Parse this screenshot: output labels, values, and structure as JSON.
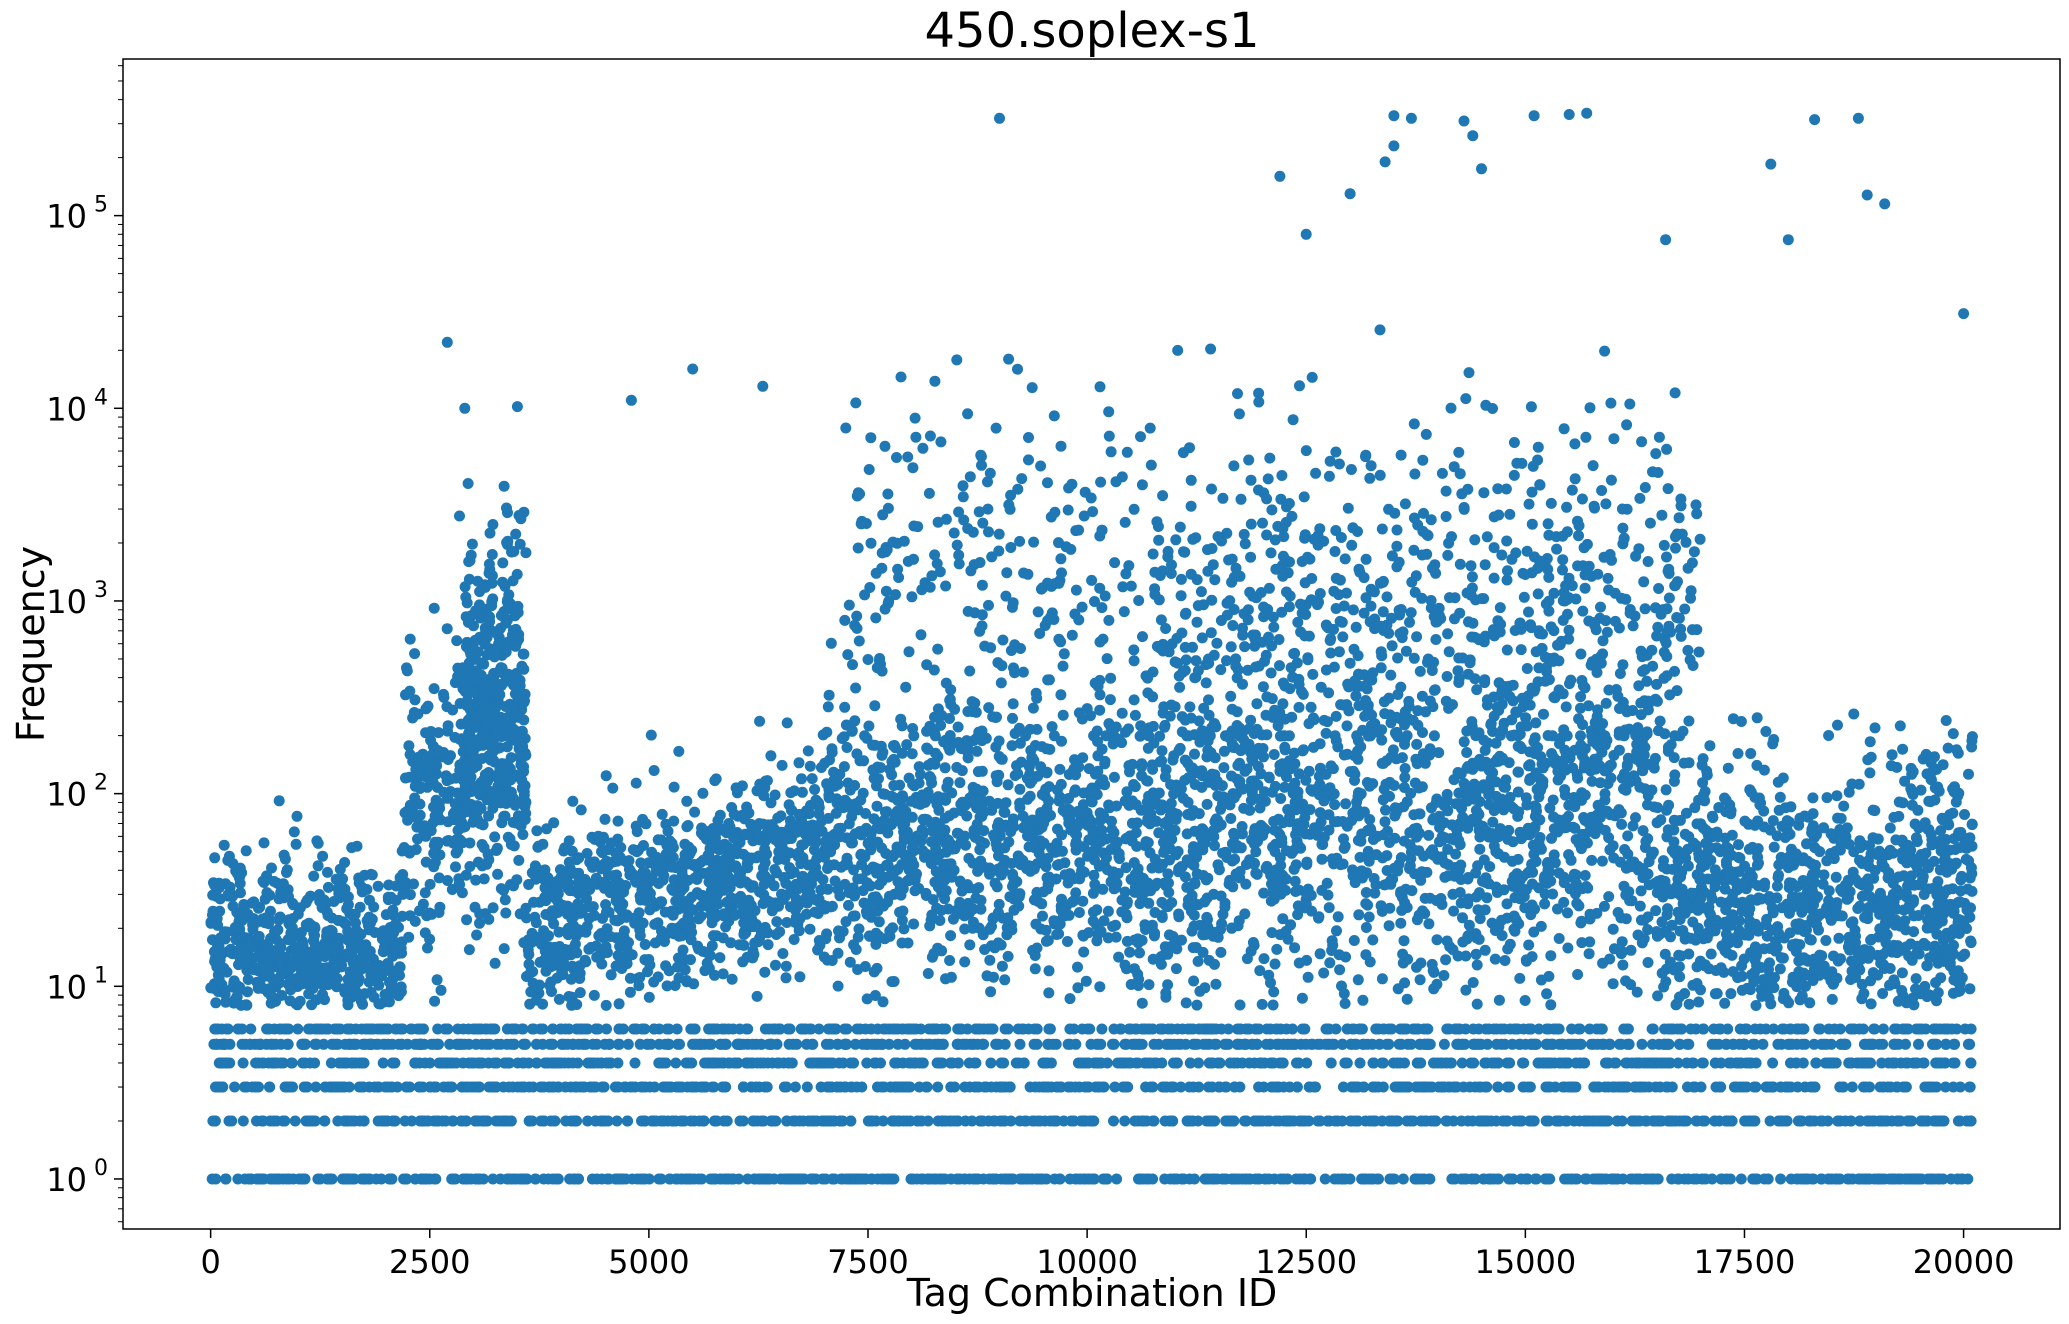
{
  "chart_data": {
    "type": "scatter",
    "title": "450.soplex-s1",
    "xlabel": "Tag Combination ID",
    "ylabel": "Frequency",
    "yscale": "log",
    "xlim": [
      -1000,
      21100
    ],
    "ylim": [
      0.55,
      650000
    ],
    "grid": false,
    "marker_color": "#1f77b4",
    "x_ticks": [
      0,
      2500,
      5000,
      7500,
      10000,
      12500,
      15000,
      17500,
      20000
    ],
    "x_tick_labels": [
      "0",
      "2500",
      "5000",
      "7500",
      "10000",
      "12500",
      "15000",
      "17500",
      "20000"
    ],
    "y_ticks": [
      1,
      10,
      100,
      1000,
      10000,
      100000
    ],
    "y_tick_labels": [
      {
        "base": "10",
        "exp": "0"
      },
      {
        "base": "10",
        "exp": "1"
      },
      {
        "base": "10",
        "exp": "2"
      },
      {
        "base": "10",
        "exp": "3"
      },
      {
        "base": "10",
        "exp": "4"
      },
      {
        "base": "10",
        "exp": "5"
      }
    ],
    "x_data_extent": [
      0,
      20100
    ],
    "discrete_levels": [
      1,
      2,
      3,
      4,
      5,
      6
    ],
    "notable_points": [
      {
        "x": 9000,
        "y": 320000
      },
      {
        "x": 13500,
        "y": 330000
      },
      {
        "x": 13700,
        "y": 320000
      },
      {
        "x": 14300,
        "y": 310000
      },
      {
        "x": 15100,
        "y": 330000
      },
      {
        "x": 15500,
        "y": 335000
      },
      {
        "x": 15700,
        "y": 340000
      },
      {
        "x": 18300,
        "y": 315000
      },
      {
        "x": 18800,
        "y": 320000
      },
      {
        "x": 13500,
        "y": 230000
      },
      {
        "x": 14400,
        "y": 260000
      },
      {
        "x": 13400,
        "y": 190000
      },
      {
        "x": 17800,
        "y": 185000
      },
      {
        "x": 14500,
        "y": 175000
      },
      {
        "x": 12200,
        "y": 160000
      },
      {
        "x": 13000,
        "y": 130000
      },
      {
        "x": 18900,
        "y": 128000
      },
      {
        "x": 19100,
        "y": 115000
      },
      {
        "x": 12500,
        "y": 80000
      },
      {
        "x": 16600,
        "y": 75000
      },
      {
        "x": 18000,
        "y": 75000
      },
      {
        "x": 2700,
        "y": 22000
      },
      {
        "x": 20000,
        "y": 31000
      },
      {
        "x": 5500,
        "y": 16000
      },
      {
        "x": 6300,
        "y": 13000
      },
      {
        "x": 2900,
        "y": 10000
      },
      {
        "x": 3500,
        "y": 10200
      },
      {
        "x": 4800,
        "y": 11000
      }
    ]
  }
}
